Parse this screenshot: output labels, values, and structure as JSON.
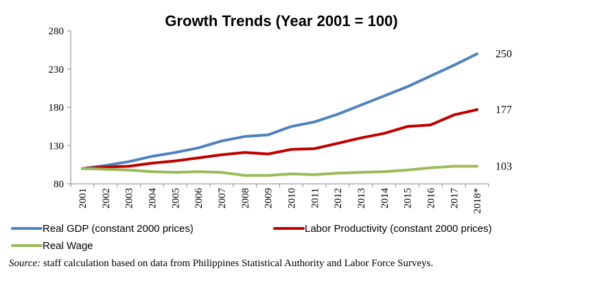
{
  "chart_data": {
    "type": "line",
    "title": "Growth Trends (Year 2001 = 100)",
    "xlabel": "",
    "ylabel": "",
    "x": [
      "2001",
      "2002",
      "2003",
      "2004",
      "2005",
      "2006",
      "2007",
      "2008",
      "2009",
      "2010",
      "2011",
      "2012",
      "2013",
      "2014",
      "2015",
      "2016",
      "2017",
      "2018*"
    ],
    "ylim": [
      80,
      280
    ],
    "yticks": [
      80,
      130,
      180,
      230,
      280
    ],
    "grid": false,
    "legend_position": "bottom",
    "series": [
      {
        "name": "Real GDP (constant 2000 prices)",
        "color": "#4F81BD",
        "values": [
          100,
          104,
          109,
          116,
          121,
          127,
          136,
          142,
          144,
          155,
          161,
          171,
          183,
          195,
          207,
          221,
          235,
          250
        ],
        "end_label": "250"
      },
      {
        "name": "Labor Productivity (constant 2000 prices)",
        "color": "#C00000",
        "values": [
          100,
          102,
          103,
          107,
          110,
          114,
          118,
          121,
          119,
          125,
          126,
          133,
          140,
          146,
          155,
          157,
          170,
          177
        ],
        "end_label": "177"
      },
      {
        "name": "Real Wage",
        "color": "#9BBB59",
        "values": [
          100,
          99,
          98,
          96,
          95,
          96,
          95,
          91,
          91,
          93,
          92,
          94,
          95,
          96,
          98,
          101,
          103,
          103
        ],
        "end_label": "103"
      }
    ]
  },
  "source": {
    "prefix": "Source:",
    "text": " staff calculation based on data from Philippines Statistical Authority and Labor Force Surveys."
  }
}
